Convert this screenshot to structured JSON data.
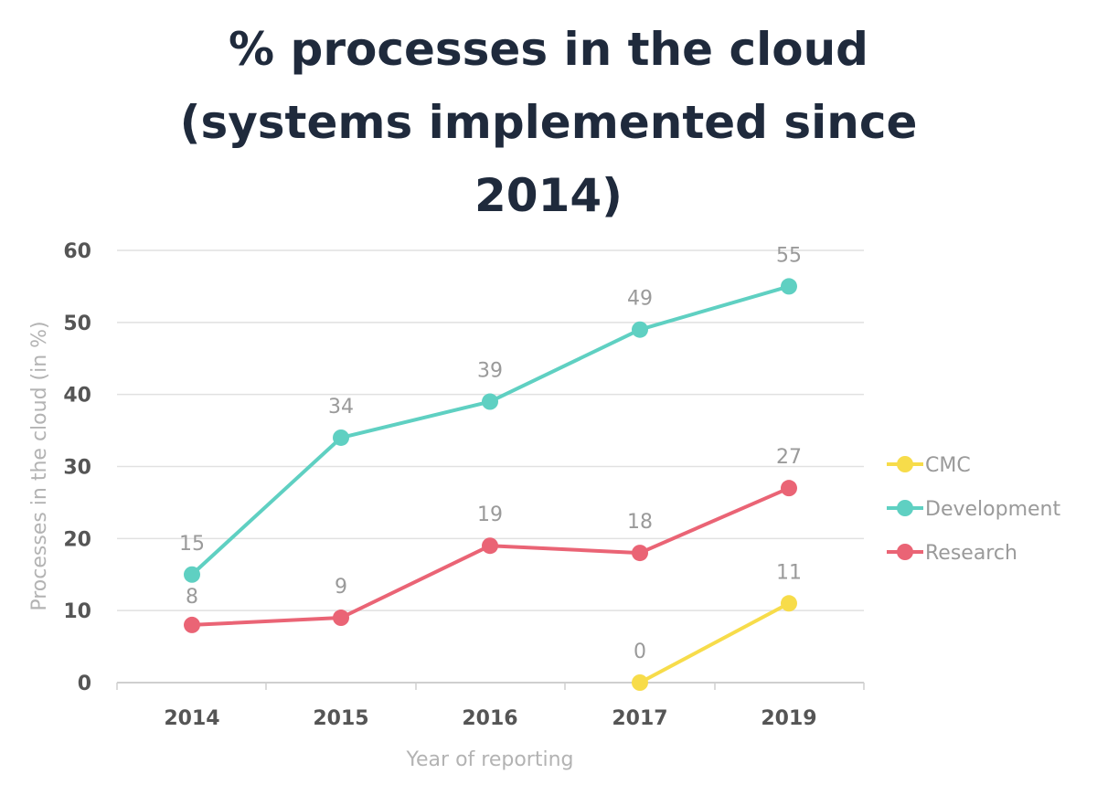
{
  "chart_data": {
    "type": "line",
    "title_lines": [
      "% processes in the cloud",
      "(systems implemented since",
      "2014)"
    ],
    "xlabel": "Year of reporting",
    "ylabel": "Processes in the cloud (in %)",
    "categories": [
      "2014",
      "2015",
      "2016",
      "2017",
      "2019"
    ],
    "ylim": [
      0,
      60
    ],
    "yticks": [
      0,
      10,
      20,
      30,
      40,
      50,
      60
    ],
    "grid": true,
    "legend_position": "right",
    "series": [
      {
        "name": "CMC",
        "color": "#f7dc4a",
        "values": [
          null,
          null,
          null,
          0,
          11
        ],
        "labels": [
          null,
          null,
          null,
          "0",
          "11"
        ]
      },
      {
        "name": "Development",
        "color": "#5fd0c2",
        "values": [
          15,
          34,
          39,
          49,
          55
        ],
        "labels": [
          "15",
          "34",
          "39",
          "49",
          "55"
        ]
      },
      {
        "name": "Research",
        "color": "#ea6475",
        "values": [
          8,
          9,
          19,
          18,
          27
        ],
        "labels": [
          "8",
          "9",
          "19",
          "18",
          "27"
        ]
      }
    ]
  }
}
